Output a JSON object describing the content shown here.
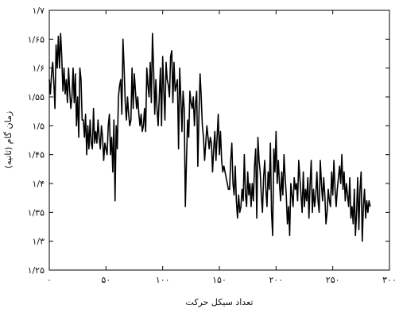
{
  "chart_data": {
    "type": "line",
    "xlabel": "تعداد سیکل حرکت",
    "ylabel": "زمان گام (ثانیه)",
    "xlim": [
      0,
      300
    ],
    "ylim": [
      1.25,
      1.7
    ],
    "grid": false,
    "x_ticks": [
      {
        "value": 0,
        "label": "۰"
      },
      {
        "value": 50,
        "label": "۵۰"
      },
      {
        "value": 100,
        "label": "۱۰۰"
      },
      {
        "value": 150,
        "label": "۱۵۰"
      },
      {
        "value": 200,
        "label": "۲۰۰"
      },
      {
        "value": 250,
        "label": "۲۵۰"
      },
      {
        "value": 300,
        "label": "۳۰۰"
      }
    ],
    "y_ticks": [
      {
        "value": 1.25,
        "label": "۱/۲۵"
      },
      {
        "value": 1.3,
        "label": "۱/۳"
      },
      {
        "value": 1.35,
        "label": "۱/۳۵"
      },
      {
        "value": 1.4,
        "label": "۱/۴"
      },
      {
        "value": 1.45,
        "label": "۱/۴۵"
      },
      {
        "value": 1.5,
        "label": "۱/۵"
      },
      {
        "value": 1.55,
        "label": "۱/۵۵"
      },
      {
        "value": 1.6,
        "label": "۱/۶"
      },
      {
        "value": 1.65,
        "label": "۱/۶۵"
      },
      {
        "value": 1.7,
        "label": "۱/۷"
      }
    ],
    "series": [
      {
        "color": "#000000",
        "values": [
          1.58,
          1.555,
          1.59,
          1.61,
          1.575,
          1.53,
          1.64,
          1.6,
          1.655,
          1.6,
          1.66,
          1.62,
          1.56,
          1.6,
          1.555,
          1.58,
          1.54,
          1.6,
          1.56,
          1.53,
          1.55,
          1.6,
          1.54,
          1.59,
          1.5,
          1.55,
          1.48,
          1.6,
          1.58,
          1.51,
          1.51,
          1.48,
          1.52,
          1.45,
          1.5,
          1.46,
          1.51,
          1.47,
          1.46,
          1.53,
          1.47,
          1.49,
          1.47,
          1.51,
          1.48,
          1.46,
          1.5,
          1.48,
          1.44,
          1.47,
          1.46,
          1.45,
          1.5,
          1.52,
          1.45,
          1.48,
          1.42,
          1.51,
          1.37,
          1.5,
          1.46,
          1.55,
          1.57,
          1.58,
          1.52,
          1.65,
          1.6,
          1.54,
          1.51,
          1.55,
          1.52,
          1.5,
          1.51,
          1.6,
          1.53,
          1.59,
          1.56,
          1.53,
          1.55,
          1.52,
          1.5,
          1.52,
          1.49,
          1.5,
          1.53,
          1.49,
          1.6,
          1.57,
          1.55,
          1.61,
          1.54,
          1.66,
          1.6,
          1.52,
          1.58,
          1.53,
          1.5,
          1.55,
          1.6,
          1.5,
          1.62,
          1.56,
          1.51,
          1.61,
          1.58,
          1.57,
          1.55,
          1.62,
          1.63,
          1.54,
          1.61,
          1.56,
          1.57,
          1.58,
          1.46,
          1.6,
          1.55,
          1.49,
          1.56,
          1.53,
          1.36,
          1.44,
          1.51,
          1.48,
          1.56,
          1.54,
          1.53,
          1.55,
          1.5,
          1.54,
          1.56,
          1.43,
          1.52,
          1.59,
          1.55,
          1.5,
          1.48,
          1.44,
          1.47,
          1.5,
          1.48,
          1.46,
          1.48,
          1.47,
          1.42,
          1.46,
          1.49,
          1.44,
          1.48,
          1.52,
          1.45,
          1.49,
          1.44,
          1.42,
          1.43,
          1.42,
          1.41,
          1.4,
          1.39,
          1.39,
          1.44,
          1.47,
          1.4,
          1.38,
          1.43,
          1.37,
          1.34,
          1.38,
          1.35,
          1.36,
          1.39,
          1.37,
          1.45,
          1.38,
          1.36,
          1.42,
          1.38,
          1.4,
          1.36,
          1.4,
          1.37,
          1.43,
          1.46,
          1.34,
          1.48,
          1.44,
          1.42,
          1.38,
          1.35,
          1.41,
          1.44,
          1.39,
          1.36,
          1.42,
          1.39,
          1.47,
          1.35,
          1.31,
          1.46,
          1.42,
          1.49,
          1.4,
          1.44,
          1.4,
          1.37,
          1.42,
          1.38,
          1.45,
          1.41,
          1.38,
          1.33,
          1.36,
          1.31,
          1.4,
          1.38,
          1.36,
          1.41,
          1.39,
          1.4,
          1.37,
          1.44,
          1.41,
          1.38,
          1.35,
          1.42,
          1.36,
          1.39,
          1.37,
          1.41,
          1.34,
          1.4,
          1.44,
          1.35,
          1.39,
          1.36,
          1.38,
          1.42,
          1.37,
          1.35,
          1.44,
          1.4,
          1.37,
          1.41,
          1.38,
          1.33,
          1.35,
          1.39,
          1.37,
          1.36,
          1.42,
          1.38,
          1.44,
          1.39,
          1.36,
          1.39,
          1.41,
          1.43,
          1.4,
          1.45,
          1.39,
          1.42,
          1.37,
          1.4,
          1.38,
          1.36,
          1.41,
          1.34,
          1.36,
          1.33,
          1.39,
          1.31,
          1.35,
          1.41,
          1.32,
          1.39,
          1.42,
          1.3,
          1.36,
          1.39,
          1.34,
          1.37,
          1.35,
          1.37,
          1.36
        ]
      }
    ]
  }
}
